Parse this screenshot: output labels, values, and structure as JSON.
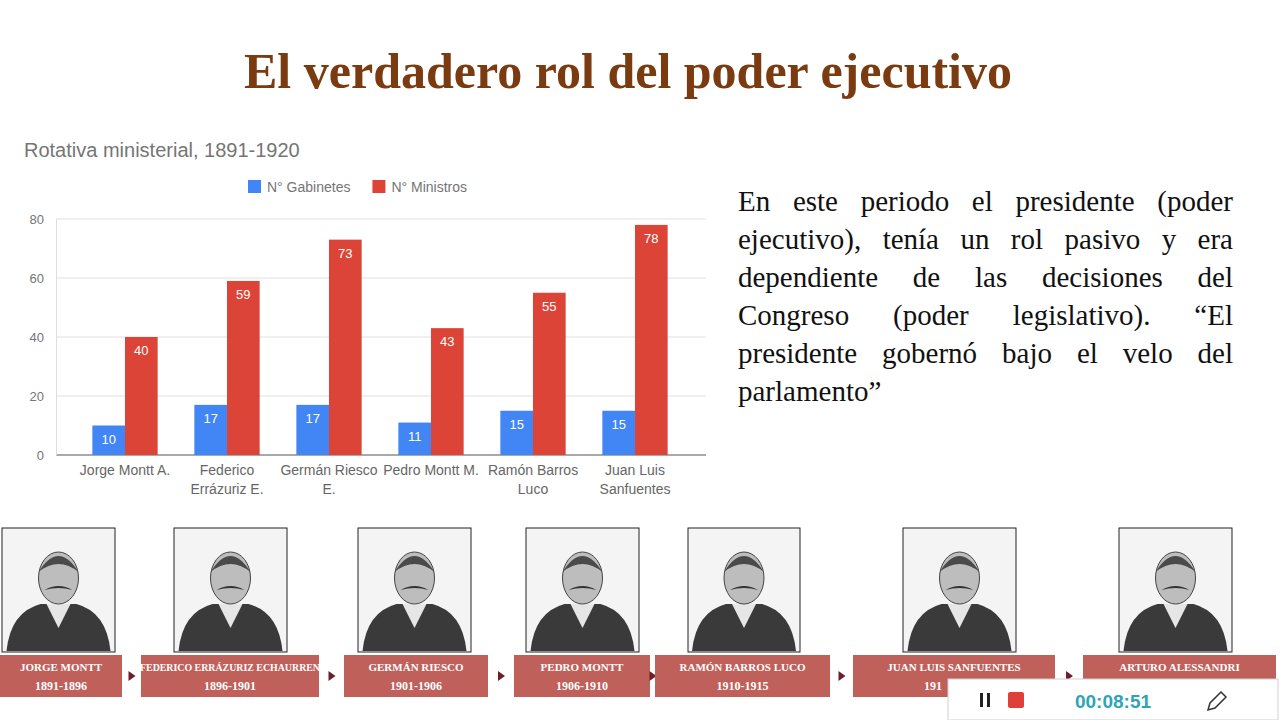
{
  "slide": {
    "title": "El verdadero rol del poder ejecutivo",
    "paragraph": "En este periodo el presidente (poder ejecutivo), tenía un rol pasivo y era dependiente de las decisiones del Congreso (poder legislativo). “El presidente gobernó bajo el velo del parlamento”",
    "timeline": [
      {
        "name": "JORGE MONTT",
        "years": "1891-1896"
      },
      {
        "name": "FEDERICO ERRÁZURIZ ECHAURREN",
        "years": "1896-1901"
      },
      {
        "name": "GERMÁN RIESCO",
        "years": "1901-1906"
      },
      {
        "name": "PEDRO MONTT",
        "years": "1906-1910"
      },
      {
        "name": "RAMÓN BARROS LUCO",
        "years": "1910-1915"
      },
      {
        "name": "JUAN LUIS SANFUENTES",
        "years": "191"
      },
      {
        "name": "ARTURO ALESSANDRI"
      }
    ],
    "recorder_time": "00:08:51"
  },
  "chart_data": {
    "type": "bar",
    "title": "Rotativa ministerial, 1891-1920",
    "categories": [
      "Jorge Montt A.",
      "Federico Errázuriz E.",
      "Germán Riesco E.",
      "Pedro Montt M.",
      "Ramón Barros Luco",
      "Juan Luis Sanfuentes"
    ],
    "series": [
      {
        "name": "N° Gabinetes",
        "color": "#4285f4",
        "values": [
          10,
          17,
          17,
          11,
          15,
          15
        ]
      },
      {
        "name": "N° Ministros",
        "color": "#db4437",
        "values": [
          40,
          59,
          73,
          43,
          55,
          78
        ]
      }
    ],
    "ylim": [
      0,
      80
    ],
    "yticks": [
      0,
      20,
      40,
      60,
      80
    ],
    "grid": true,
    "legend": "top",
    "data_labels": true
  }
}
